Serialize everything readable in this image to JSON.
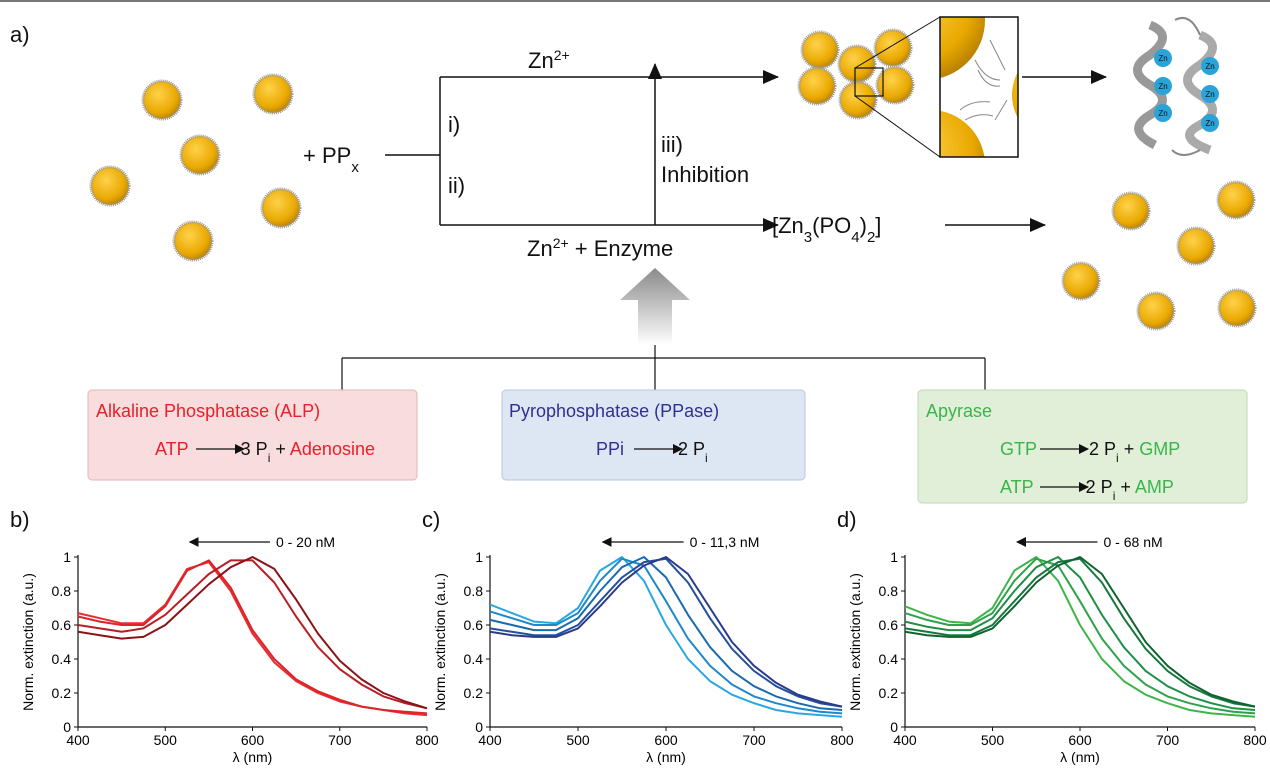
{
  "panel_a": "a)",
  "diagram": {
    "reagent": "+ PP",
    "reagent_sub": "x",
    "zn": "Zn",
    "zn_charge": "2+",
    "route_i": "i)",
    "route_ii": "ii)",
    "route_iii": "iii)",
    "inhibition": "Inhibition",
    "enzyme_plus": " + Enzyme",
    "product": [
      "[Zn",
      "3",
      "(PO",
      "4",
      ")",
      "2",
      "]"
    ],
    "zn_site": "Zn",
    "enzymes": [
      {
        "name": "Alkaline Phosphatase (ALP)",
        "reactions": [
          {
            "substrate": "ATP",
            "yield": "3 P",
            "sub": "i",
            "plus": " + ",
            "product": "Adenosine"
          }
        ]
      },
      {
        "name": "Pyrophosphatase (PPase)",
        "reactions": [
          {
            "substrate": "PPi",
            "yield": "2 P",
            "sub": "i"
          }
        ]
      },
      {
        "name": "Apyrase",
        "reactions": [
          {
            "substrate": "GTP",
            "yield": "2 P",
            "sub": "i",
            "plus": " + ",
            "product": "GMP"
          },
          {
            "substrate": "ATP",
            "yield": "2 P",
            "sub": "i",
            "plus": " + ",
            "product": "AMP"
          }
        ]
      }
    ]
  },
  "chart_data": [
    {
      "type": "line",
      "panel": "b)",
      "annotation": "0 - 20 nM",
      "xlabel": "λ (nm)",
      "ylabel": "Norm. extinction (a.u.)",
      "x": [
        400,
        425,
        450,
        475,
        500,
        525,
        550,
        575,
        600,
        625,
        650,
        675,
        700,
        725,
        750,
        775,
        800
      ],
      "xlim": [
        400,
        800
      ],
      "xticks": [
        400,
        500,
        600,
        700,
        800
      ],
      "ylim": [
        0,
        1
      ],
      "yticks": [
        0,
        0.2,
        0.4,
        0.6,
        0.8,
        1
      ],
      "series": [
        {
          "color": "#ee2a2f",
          "values": [
            0.67,
            0.64,
            0.61,
            0.61,
            0.72,
            0.93,
            0.97,
            0.8,
            0.55,
            0.38,
            0.27,
            0.2,
            0.15,
            0.12,
            0.1,
            0.08,
            0.07
          ]
        },
        {
          "color": "#d9252b",
          "values": [
            0.65,
            0.62,
            0.6,
            0.6,
            0.71,
            0.92,
            0.98,
            0.82,
            0.57,
            0.4,
            0.28,
            0.21,
            0.16,
            0.12,
            0.1,
            0.09,
            0.08
          ]
        },
        {
          "color": "#b81e24",
          "values": [
            0.6,
            0.58,
            0.56,
            0.58,
            0.66,
            0.78,
            0.9,
            0.98,
            0.98,
            0.85,
            0.65,
            0.47,
            0.34,
            0.25,
            0.18,
            0.14,
            0.11
          ]
        },
        {
          "color": "#8b1217",
          "values": [
            0.56,
            0.54,
            0.52,
            0.53,
            0.6,
            0.72,
            0.84,
            0.94,
            1.0,
            0.93,
            0.75,
            0.55,
            0.39,
            0.28,
            0.2,
            0.15,
            0.11
          ]
        }
      ]
    },
    {
      "type": "line",
      "panel": "c)",
      "annotation": "0 - 11,3 nM",
      "xlabel": "λ (nm)",
      "ylabel": "Norm. extinction (a.u.)",
      "x": [
        400,
        425,
        450,
        475,
        500,
        525,
        550,
        575,
        600,
        625,
        650,
        675,
        700,
        725,
        750,
        775,
        800
      ],
      "xlim": [
        400,
        800
      ],
      "xticks": [
        400,
        500,
        600,
        700,
        800
      ],
      "ylim": [
        0,
        1
      ],
      "yticks": [
        0,
        0.2,
        0.4,
        0.6,
        0.8,
        1
      ],
      "series": [
        {
          "color": "#29a8e0",
          "values": [
            0.72,
            0.67,
            0.62,
            0.61,
            0.7,
            0.92,
            1.0,
            0.86,
            0.6,
            0.4,
            0.27,
            0.19,
            0.14,
            0.1,
            0.08,
            0.07,
            0.06
          ]
        },
        {
          "color": "#1e88c8",
          "values": [
            0.68,
            0.64,
            0.6,
            0.6,
            0.67,
            0.86,
            0.99,
            0.95,
            0.74,
            0.52,
            0.36,
            0.25,
            0.18,
            0.14,
            0.11,
            0.09,
            0.08
          ]
        },
        {
          "color": "#1a6ab0",
          "values": [
            0.63,
            0.6,
            0.57,
            0.57,
            0.64,
            0.8,
            0.94,
            1.0,
            0.88,
            0.66,
            0.47,
            0.33,
            0.24,
            0.18,
            0.14,
            0.11,
            0.1
          ]
        },
        {
          "color": "#24509a",
          "values": [
            0.58,
            0.56,
            0.54,
            0.54,
            0.6,
            0.74,
            0.88,
            0.97,
            0.99,
            0.85,
            0.64,
            0.46,
            0.33,
            0.24,
            0.18,
            0.14,
            0.12
          ]
        },
        {
          "color": "#2b3a8c",
          "values": [
            0.56,
            0.54,
            0.53,
            0.53,
            0.58,
            0.71,
            0.85,
            0.95,
            1.0,
            0.9,
            0.7,
            0.5,
            0.36,
            0.26,
            0.19,
            0.15,
            0.12
          ]
        }
      ]
    },
    {
      "type": "line",
      "panel": "d)",
      "annotation": "0 - 68 nM",
      "xlabel": "λ (nm)",
      "ylabel": "Norm. extinction (a.u.)",
      "x": [
        400,
        425,
        450,
        475,
        500,
        525,
        550,
        575,
        600,
        625,
        650,
        675,
        700,
        725,
        750,
        775,
        800
      ],
      "xlim": [
        400,
        800
      ],
      "xticks": [
        400,
        500,
        600,
        700,
        800
      ],
      "ylim": [
        0,
        1
      ],
      "yticks": [
        0,
        0.2,
        0.4,
        0.6,
        0.8,
        1
      ],
      "series": [
        {
          "color": "#3db54a",
          "values": [
            0.71,
            0.66,
            0.62,
            0.61,
            0.7,
            0.92,
            1.0,
            0.86,
            0.6,
            0.4,
            0.27,
            0.19,
            0.14,
            0.1,
            0.08,
            0.07,
            0.06
          ]
        },
        {
          "color": "#2ea24a",
          "values": [
            0.67,
            0.63,
            0.6,
            0.6,
            0.67,
            0.86,
            0.99,
            0.95,
            0.74,
            0.52,
            0.36,
            0.25,
            0.18,
            0.14,
            0.11,
            0.09,
            0.08
          ]
        },
        {
          "color": "#1f8f45",
          "values": [
            0.62,
            0.59,
            0.57,
            0.57,
            0.64,
            0.8,
            0.94,
            1.0,
            0.88,
            0.66,
            0.47,
            0.33,
            0.24,
            0.18,
            0.14,
            0.11,
            0.1
          ]
        },
        {
          "color": "#16783c",
          "values": [
            0.58,
            0.56,
            0.54,
            0.54,
            0.6,
            0.74,
            0.88,
            0.97,
            0.99,
            0.85,
            0.64,
            0.46,
            0.33,
            0.24,
            0.18,
            0.14,
            0.12
          ]
        },
        {
          "color": "#0e6330",
          "values": [
            0.56,
            0.54,
            0.53,
            0.53,
            0.58,
            0.71,
            0.85,
            0.95,
            1.0,
            0.9,
            0.7,
            0.5,
            0.36,
            0.26,
            0.19,
            0.15,
            0.12
          ]
        }
      ]
    }
  ]
}
